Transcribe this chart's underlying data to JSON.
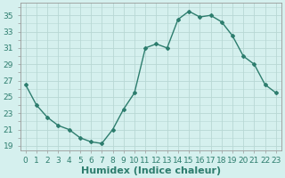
{
  "x": [
    0,
    1,
    2,
    3,
    4,
    5,
    6,
    7,
    8,
    9,
    10,
    11,
    12,
    13,
    14,
    15,
    16,
    17,
    18,
    19,
    20,
    21,
    22,
    23
  ],
  "y": [
    26.5,
    24.0,
    22.5,
    21.5,
    21.0,
    20.0,
    19.5,
    19.3,
    21.0,
    23.5,
    25.5,
    31.0,
    31.5,
    31.0,
    34.5,
    35.5,
    34.8,
    35.0,
    34.2,
    32.5,
    30.0,
    29.0,
    26.5,
    25.5
  ],
  "line_color": "#2d7d6e",
  "marker": "D",
  "marker_size": 2,
  "bg_color": "#d5f0ee",
  "grid_color": "#b8d8d4",
  "xlabel": "Humidex (Indice chaleur)",
  "xlim": [
    -0.5,
    23.5
  ],
  "ylim": [
    18.5,
    36.5
  ],
  "yticks": [
    19,
    21,
    23,
    25,
    27,
    29,
    31,
    33,
    35
  ],
  "xticks": [
    0,
    1,
    2,
    3,
    4,
    5,
    6,
    7,
    8,
    9,
    10,
    11,
    12,
    13,
    14,
    15,
    16,
    17,
    18,
    19,
    20,
    21,
    22,
    23
  ],
  "tick_label_fontsize": 6.5,
  "xlabel_fontsize": 8.0,
  "line_width": 1.0
}
